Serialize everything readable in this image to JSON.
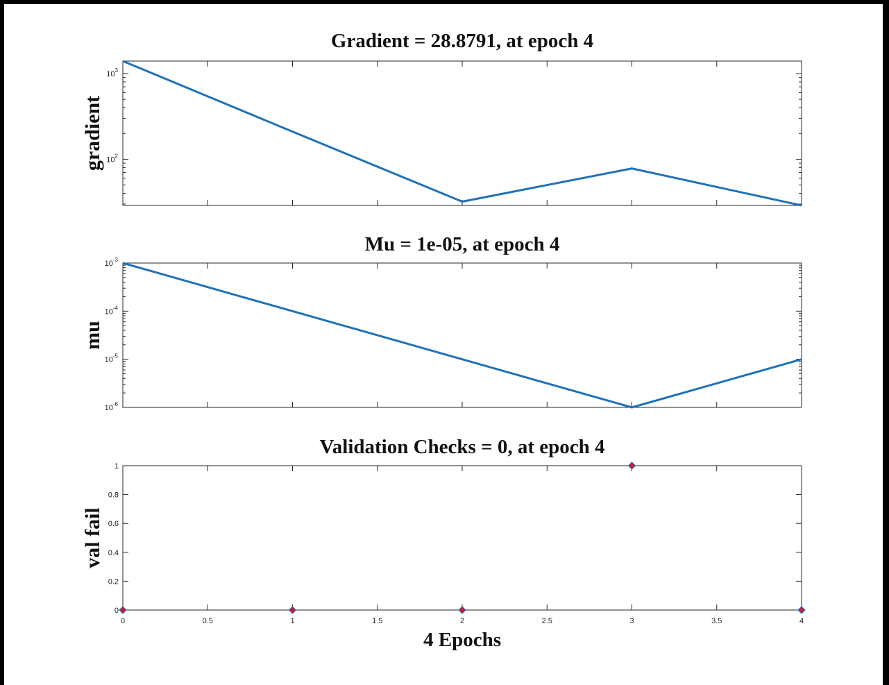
{
  "chart_data": [
    {
      "type": "line",
      "title": "Gradient = 28.8791, at epoch 4",
      "ylabel": "gradient",
      "xlabel": "",
      "yscale": "log",
      "x": [
        0,
        1,
        2,
        3,
        4
      ],
      "values": [
        1400,
        210,
        32,
        78,
        28.8791
      ],
      "xlim": [
        0,
        4
      ],
      "ylim": [
        28.8791,
        1400
      ],
      "yticks": [
        100,
        1000
      ],
      "ytick_labels": [
        {
          "base": "10",
          "exp": "2"
        },
        {
          "base": "10",
          "exp": "3"
        }
      ],
      "xtick_labels_shown": false,
      "color": "#1f72b8"
    },
    {
      "type": "line",
      "title": "Mu = 1e-05, at epoch 4",
      "ylabel": "mu",
      "xlabel": "",
      "yscale": "log",
      "x": [
        0,
        1,
        2,
        3,
        4
      ],
      "values": [
        0.001,
        0.0001,
        1e-05,
        1e-06,
        1e-05
      ],
      "xlim": [
        0,
        4
      ],
      "ylim": [
        1e-06,
        0.001
      ],
      "yticks": [
        1e-06,
        1e-05,
        0.0001,
        0.001
      ],
      "ytick_labels": [
        {
          "base": "10",
          "exp": "-6"
        },
        {
          "base": "10",
          "exp": "-5"
        },
        {
          "base": "10",
          "exp": "-4"
        },
        {
          "base": "10",
          "exp": "-3"
        }
      ],
      "xtick_labels_shown": false,
      "color": "#1f72b8"
    },
    {
      "type": "scatter",
      "title": "Validation Checks = 0, at epoch 4",
      "ylabel": "val fail",
      "xlabel": "4 Epochs",
      "yscale": "linear",
      "x": [
        0,
        1,
        2,
        3,
        4
      ],
      "values": [
        0,
        0,
        0,
        1,
        0
      ],
      "xlim": [
        0,
        4
      ],
      "ylim": [
        0,
        1
      ],
      "yticks": [
        0,
        0.2,
        0.4,
        0.6,
        0.8,
        1
      ],
      "ytick_labels": [
        "0",
        "0.2",
        "0.4",
        "0.6",
        "0.8",
        "1"
      ],
      "xticks": [
        0,
        0.5,
        1,
        1.5,
        2,
        2.5,
        3,
        3.5,
        4
      ],
      "xtick_labels": [
        "0",
        "0.5",
        "1",
        "1.5",
        "2",
        "2.5",
        "3",
        "3.5",
        "4"
      ],
      "xtick_labels_shown": true,
      "marker": "diamond",
      "marker_edge_color": "#1f72b8",
      "marker_face_color": "#c41e3a"
    }
  ]
}
